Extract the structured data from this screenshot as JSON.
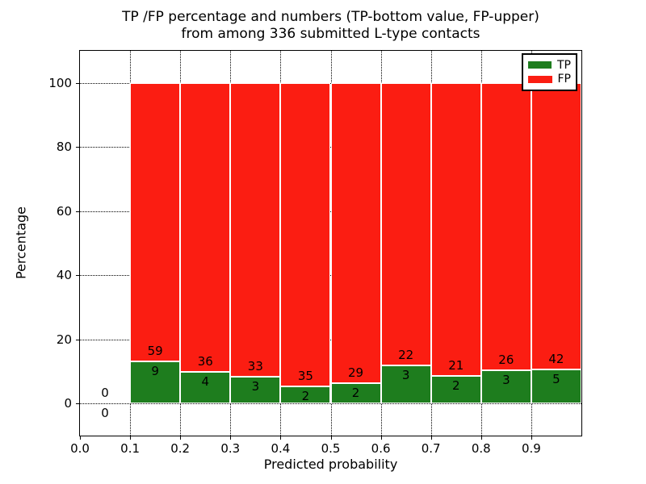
{
  "chart_data": {
    "type": "bar",
    "stacked": true,
    "normalized": "each bar stacked to 100 percent of bin total; numeric labels are raw counts (TP bottom, FP upper)",
    "title": "TP /FP percentage and numbers (TP-bottom value, FP-upper)\nfrom among 336 submitted L-type contacts",
    "title_lines": [
      "TP /FP percentage and numbers (TP-bottom value, FP-upper)",
      "from among 336 submitted L-type contacts"
    ],
    "total_contacts": 336,
    "xlabel": "Predicted probability",
    "ylabel": "Percentage",
    "xlim": [
      0.0,
      1.0
    ],
    "ylim": [
      -10,
      110
    ],
    "x_tick_values": [
      0.0,
      0.1,
      0.2,
      0.3,
      0.4,
      0.5,
      0.6,
      0.7,
      0.8,
      0.9
    ],
    "x_tick_labels": [
      "0.0",
      "0.1",
      "0.2",
      "0.3",
      "0.4",
      "0.5",
      "0.6",
      "0.7",
      "0.8",
      "0.9"
    ],
    "y_ticks": [
      0,
      20,
      40,
      60,
      80,
      100
    ],
    "y_tick_labels": [
      "0",
      "20",
      "40",
      "60",
      "80",
      "100"
    ],
    "grid": {
      "visible": true,
      "style": "dotted",
      "color": "#000000"
    },
    "legend": {
      "position": "upper right",
      "entries": [
        {
          "label": "TP",
          "color": "#1e7d1e"
        },
        {
          "label": "FP",
          "color": "#fb1d12"
        }
      ]
    },
    "bins": [
      {
        "x_range": [
          0.0,
          0.1
        ],
        "tp_count": 0,
        "fp_count": 0,
        "tp_percent": 0
      },
      {
        "x_range": [
          0.1,
          0.2
        ],
        "tp_count": 9,
        "fp_count": 59,
        "tp_percent": 13.24
      },
      {
        "x_range": [
          0.2,
          0.3
        ],
        "tp_count": 4,
        "fp_count": 36,
        "tp_percent": 10.0
      },
      {
        "x_range": [
          0.3,
          0.4
        ],
        "tp_count": 3,
        "fp_count": 33,
        "tp_percent": 8.33
      },
      {
        "x_range": [
          0.4,
          0.5
        ],
        "tp_count": 2,
        "fp_count": 35,
        "tp_percent": 5.41
      },
      {
        "x_range": [
          0.5,
          0.6
        ],
        "tp_count": 2,
        "fp_count": 29,
        "tp_percent": 6.45
      },
      {
        "x_range": [
          0.6,
          0.7
        ],
        "tp_count": 3,
        "fp_count": 22,
        "tp_percent": 12.0
      },
      {
        "x_range": [
          0.7,
          0.8
        ],
        "tp_count": 2,
        "fp_count": 21,
        "tp_percent": 8.7
      },
      {
        "x_range": [
          0.8,
          0.9
        ],
        "tp_count": 3,
        "fp_count": 26,
        "tp_percent": 10.34
      },
      {
        "x_range": [
          0.9,
          1.0
        ],
        "tp_count": 5,
        "fp_count": 42,
        "tp_percent": 10.64
      }
    ]
  }
}
